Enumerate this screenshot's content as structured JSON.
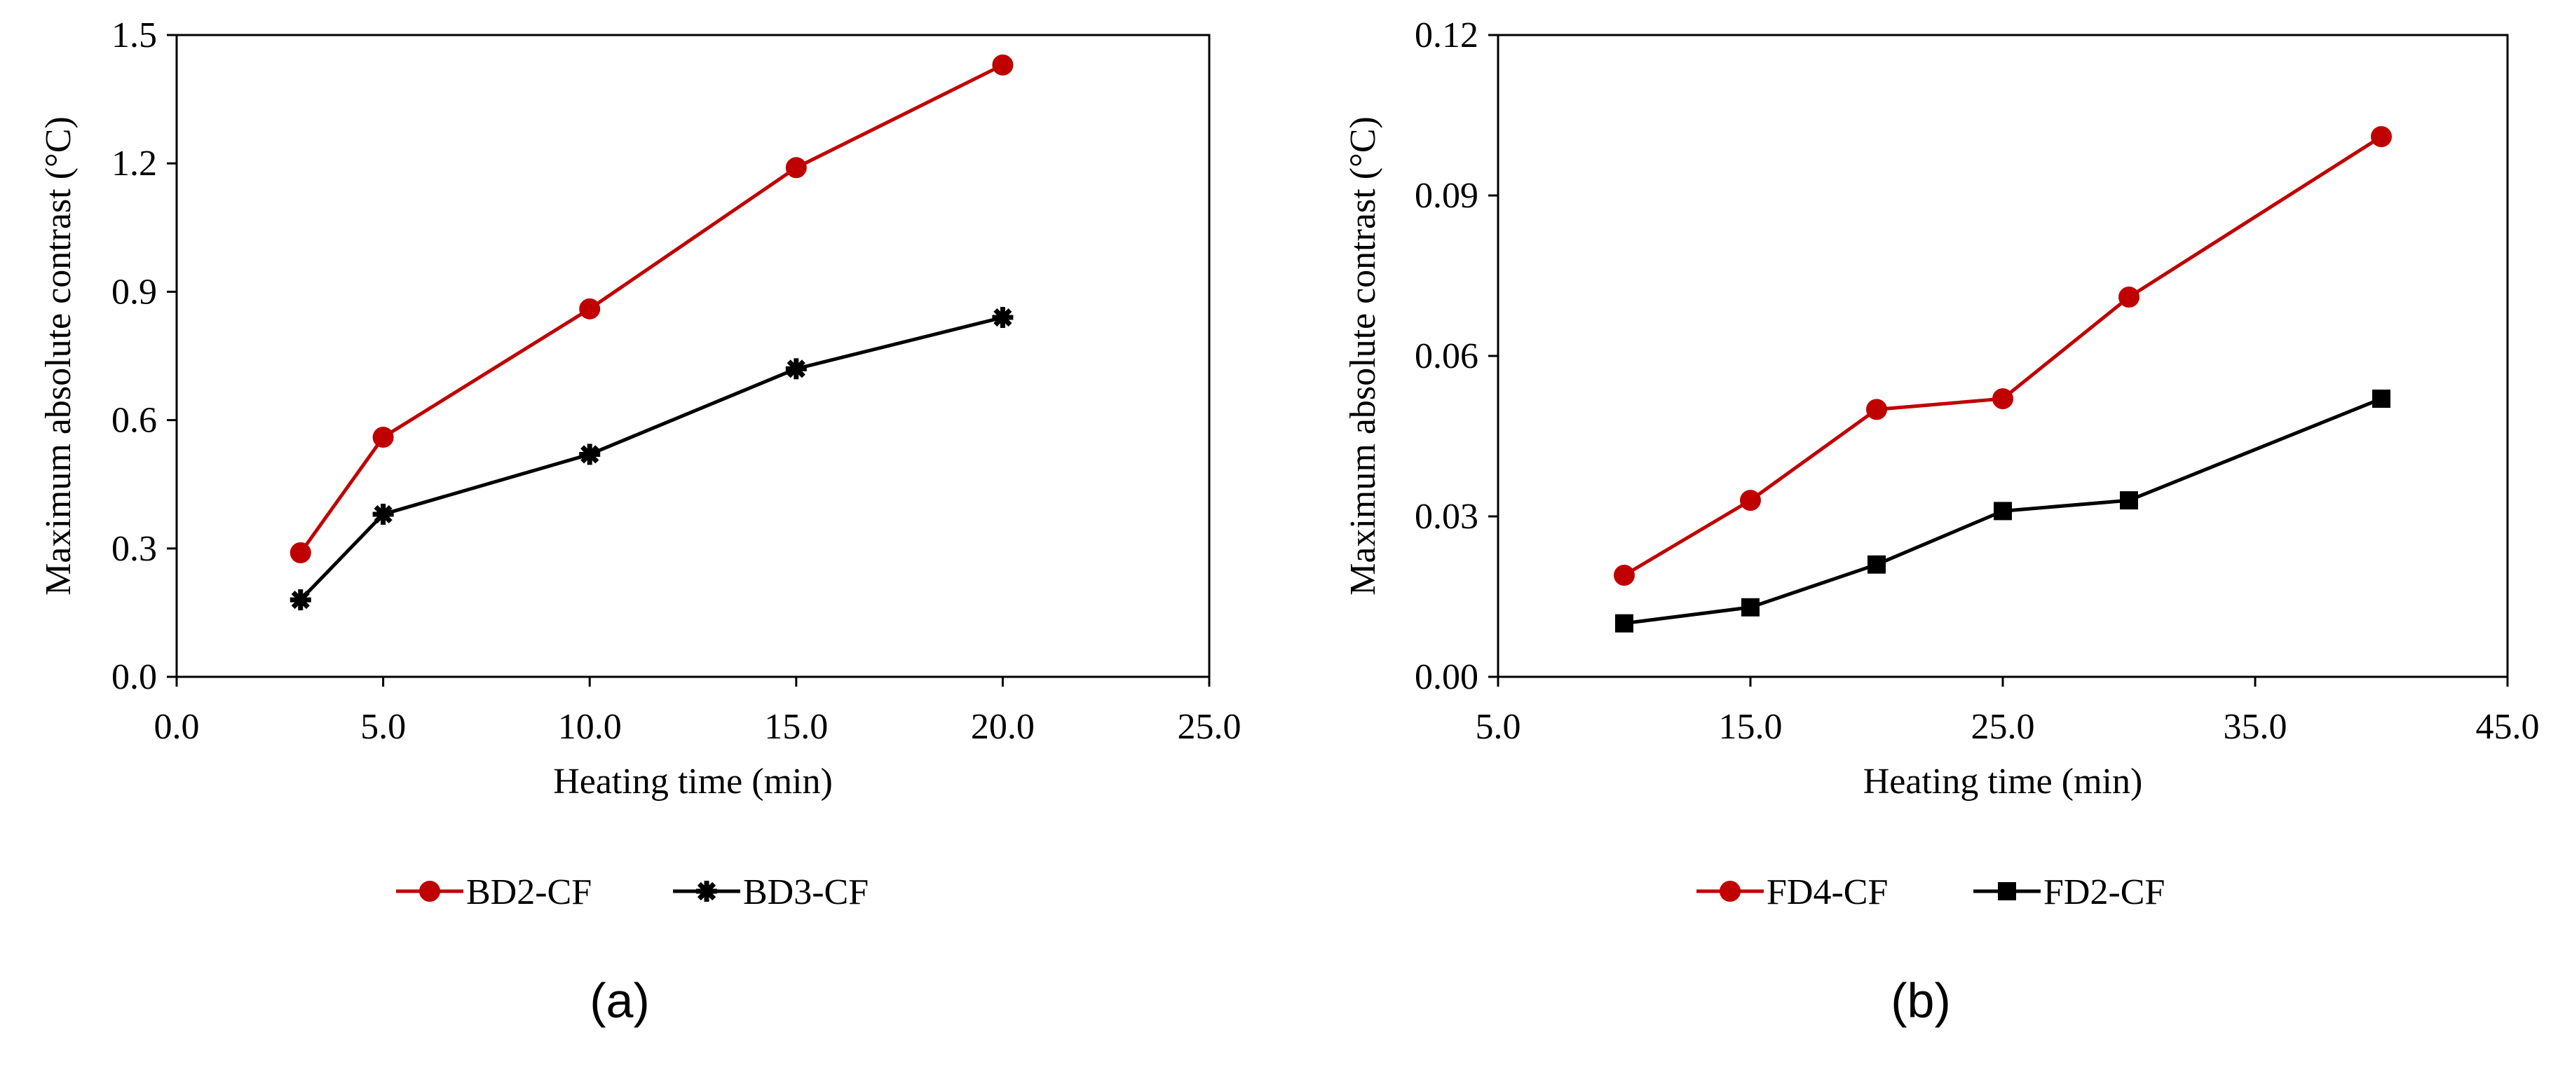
{
  "chart_data": [
    {
      "type": "line",
      "panel_label": "(a)",
      "xlabel": "Heating time (min)",
      "ylabel": "Maximum absolute contrast (°C)",
      "xlim": [
        0,
        25
      ],
      "ylim": [
        0,
        1.5
      ],
      "x_ticks": [
        "0.0",
        "5.0",
        "10.0",
        "15.0",
        "20.0",
        "25.0"
      ],
      "y_ticks": [
        "0.0",
        "0.3",
        "0.6",
        "0.9",
        "1.2",
        "1.5"
      ],
      "x_tick_values": [
        0,
        5,
        10,
        15,
        20,
        25
      ],
      "y_tick_values": [
        0,
        0.3,
        0.6,
        0.9,
        1.2,
        1.5
      ],
      "legend_position": "bottom",
      "series": [
        {
          "name": "BD2-CF",
          "color": "#c00000",
          "marker": "circle",
          "x": [
            3,
            5,
            10,
            15,
            20
          ],
          "y": [
            0.29,
            0.56,
            0.86,
            1.19,
            1.43
          ]
        },
        {
          "name": "BD3-CF",
          "color": "#000000",
          "marker": "star",
          "x": [
            3,
            5,
            10,
            15,
            20
          ],
          "y": [
            0.18,
            0.38,
            0.52,
            0.72,
            0.84
          ]
        }
      ]
    },
    {
      "type": "line",
      "panel_label": "(b)",
      "xlabel": "Heating time (min)",
      "ylabel": "Maximum absolute contrast (°C)",
      "xlim": [
        5,
        45
      ],
      "ylim": [
        0,
        0.12
      ],
      "x_ticks": [
        "5.0",
        "15.0",
        "25.0",
        "35.0",
        "45.0"
      ],
      "y_ticks": [
        "0.00",
        "0.03",
        "0.06",
        "0.09",
        "0.12"
      ],
      "x_tick_values": [
        5,
        15,
        25,
        35,
        45
      ],
      "y_tick_values": [
        0,
        0.03,
        0.06,
        0.09,
        0.12
      ],
      "legend_position": "bottom",
      "series": [
        {
          "name": "FD4-CF",
          "color": "#c00000",
          "marker": "circle",
          "x": [
            10,
            15,
            20,
            25,
            30,
            40
          ],
          "y": [
            0.019,
            0.033,
            0.05,
            0.052,
            0.071,
            0.101
          ]
        },
        {
          "name": "FD2-CF",
          "color": "#000000",
          "marker": "square",
          "x": [
            10,
            15,
            20,
            25,
            30,
            40
          ],
          "y": [
            0.01,
            0.013,
            0.021,
            0.031,
            0.033,
            0.052
          ]
        }
      ]
    }
  ]
}
